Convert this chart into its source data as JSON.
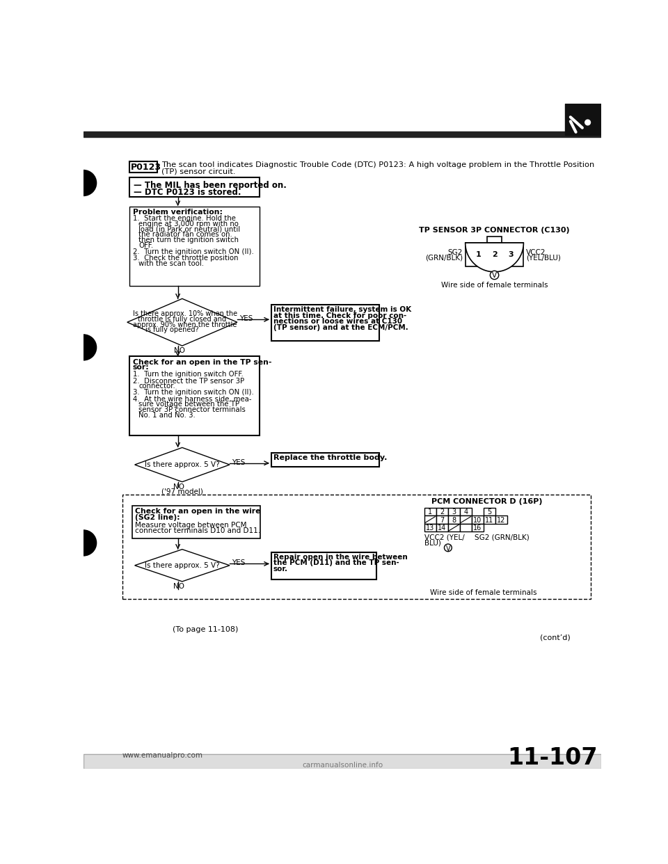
{
  "bg_color": "#ffffff",
  "page_number": "11-107",
  "website": "www.emanualpro.com",
  "watermark": "carmanualsonline.info",
  "dtc_code": "P0123",
  "title_line1": "The scan tool indicates Diagnostic Trouble Code (DTC) P0123: A high voltage problem in the Throttle Position",
  "title_line2": "(TP) sensor circuit.",
  "mil_line1": "— The MIL has been reported on.",
  "mil_line2": "— DTC P0123 is stored.",
  "prob_verify_title": "Problem verification:",
  "prob_step1": "Start the engine. Hold the",
  "prob_step1b": "engine at 3,000 rpm with no",
  "prob_step1c": "load (in Park or neutral) until",
  "prob_step1d": "the radiator fan comes on.",
  "prob_step1e": "then turn the ignition switch",
  "prob_step1f": "OFF.",
  "prob_step2": "Turn the ignition switch ON (II).",
  "prob_step3": "Check the throttle position",
  "prob_step3b": "with the scan tool.",
  "diamond1_line1": "Is there approx. 10% when the",
  "diamond1_line2": "throttle is fully closed and",
  "diamond1_line3": "approx. 90% when the throttle",
  "diamond1_line4": "is fully opened?",
  "yes_box1_line1": "Intermittent failure, system is OK",
  "yes_box1_line2": "at this time. Check for poor con-",
  "yes_box1_line3": "nections or loose wires at C130",
  "yes_box1_line4": "(TP sensor) and at the ECM/PCM.",
  "check_tp_title1": "Check for an open in the TP sen-",
  "check_tp_title2": "sor:",
  "check_tp_step1": "Turn the ignition switch OFF.",
  "check_tp_step2": "Disconnect the TP sensor 3P",
  "check_tp_step2b": "connector.",
  "check_tp_step3": "Turn the ignition switch ON (II).",
  "check_tp_step4": "At the wire harness side, mea-",
  "check_tp_step4b": "sure voltage between the TP",
  "check_tp_step4c": "sensor 3P connector terminals",
  "check_tp_step4d": "No. 1 and No. 3.",
  "tp_sensor_title": "TP SENSOR 3P CONNECTOR (C130)",
  "sg2_label_line1": "SG2",
  "sg2_label_line2": "(GRN/BLK)",
  "vcc2_label_line1": "VCC2",
  "vcc2_label_line2": "(YEL/BLU)",
  "pin1": "1",
  "pin2": "2",
  "pin3": "3",
  "v_label": "V",
  "wire_side1": "Wire side of female terminals",
  "diamond2_text": "Is there approx. 5 V?",
  "yes_box2": "Replace the throttle body.",
  "no_label": "NO",
  "yes_label": "YES",
  "model_note": "('97 model)",
  "pcm_title": "PCM CONNECTOR D (16P)",
  "check_sg2_title1": "Check for an open in the wire",
  "check_sg2_title2": "(SG2 line):",
  "check_sg2_step": "Measure voltage between PCM",
  "check_sg2_stepb": "connector terminals D10 and D11.",
  "vcc2_pcm1": "VCC2 (YEL/",
  "vcc2_pcm2": "BLU)",
  "sg2_pcm": "SG2 (GRN/BLK)",
  "wire_side2": "Wire side of female terminals",
  "diamond3_text": "Is there approx. 5 V?",
  "yes_box3_line1": "Repair open in the wire between",
  "yes_box3_line2": "the PCM (D11) and the TP sen-",
  "yes_box3_line3": "sor.",
  "to_page": "(To page 11-108)",
  "contd": "(cont’d)"
}
